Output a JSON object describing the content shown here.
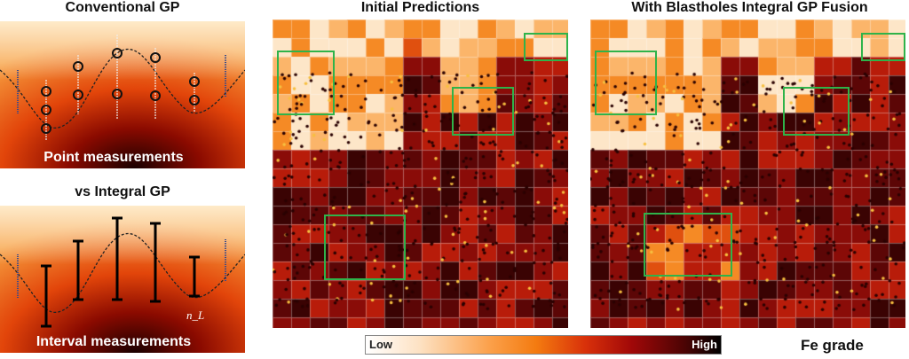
{
  "left": {
    "top_title": "Conventional GP",
    "top_caption": "Point measurements",
    "bottom_title": "vs Integral GP",
    "bottom_caption": "Interval measurements",
    "annotation": "n_L"
  },
  "maps": [
    {
      "title": "Initial Predictions"
    },
    {
      "title": "With Blastholes Integral GP Fusion"
    }
  ],
  "colorbar": {
    "low": "Low",
    "high": "High",
    "label": "Fe grade"
  },
  "colors": {
    "box": "#2fb34a"
  }
}
